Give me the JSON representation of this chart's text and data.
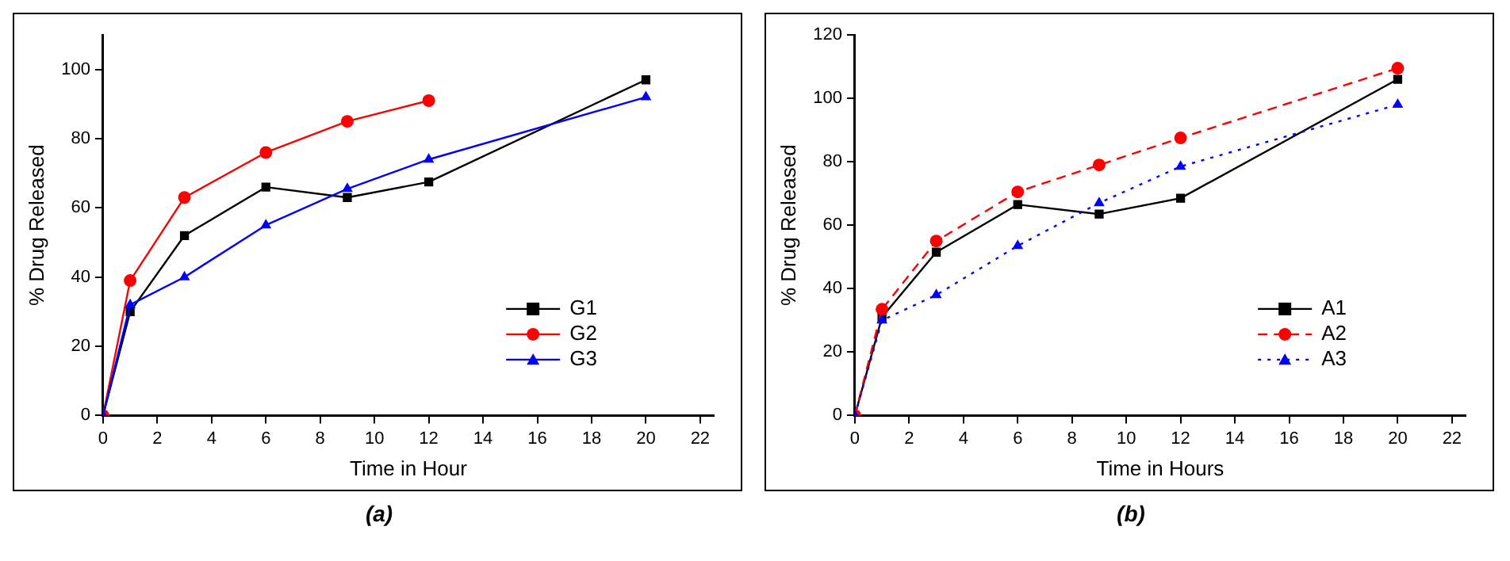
{
  "chart_data": [
    {
      "type": "line",
      "xlabel": "Time in Hour",
      "ylabel": "% Drug Released",
      "x": [
        0,
        1,
        3,
        6,
        9,
        12,
        20
      ],
      "xlim": [
        0,
        22.5
      ],
      "xticks": [
        0,
        2,
        4,
        6,
        8,
        10,
        12,
        14,
        16,
        18,
        20,
        22
      ],
      "ylim": [
        0,
        110
      ],
      "yticks": [
        0,
        20,
        40,
        60,
        80,
        100
      ],
      "grid": false,
      "legend": "bottom right",
      "annotations": [
        "(a)"
      ],
      "series": [
        {
          "name": "G1",
          "color": "#000000",
          "marker": "square",
          "line_style": "solid",
          "values": [
            0,
            30,
            52,
            66,
            63,
            67.5,
            97
          ]
        },
        {
          "name": "G2",
          "color": "#ff0000",
          "marker": "circle",
          "line_style": "solid",
          "values": [
            0,
            39,
            63,
            76,
            85,
            91,
            null
          ]
        },
        {
          "name": "G3",
          "color": "#0000ff",
          "marker": "triangle",
          "line_style": "solid",
          "values": [
            0,
            32,
            40,
            55,
            65.5,
            74,
            92
          ]
        }
      ]
    },
    {
      "type": "line",
      "xlabel": "Time in Hours",
      "ylabel": "% Drug Released",
      "x": [
        0,
        1,
        3,
        6,
        9,
        12,
        20
      ],
      "xlim": [
        0,
        22.5
      ],
      "xticks": [
        0,
        2,
        4,
        6,
        8,
        10,
        12,
        14,
        16,
        18,
        20,
        22
      ],
      "ylim": [
        0,
        120
      ],
      "yticks": [
        0,
        20,
        40,
        60,
        80,
        100,
        120
      ],
      "grid": false,
      "legend": "bottom right",
      "annotations": [
        "(b)"
      ],
      "series": [
        {
          "name": "A1",
          "color": "#000000",
          "marker": "square",
          "line_style": "solid",
          "values": [
            0,
            31,
            51.5,
            66.5,
            63.5,
            68.5,
            106
          ]
        },
        {
          "name": "A2",
          "color": "#ff0000",
          "marker": "circle",
          "line_style": "dashed",
          "values": [
            0,
            33.5,
            55,
            70.5,
            79,
            87.5,
            109.5
          ]
        },
        {
          "name": "A3",
          "color": "#0000ff",
          "marker": "triangle",
          "line_style": "dotted",
          "values": [
            0,
            30,
            38,
            53.5,
            67,
            78.5,
            98
          ]
        }
      ]
    }
  ]
}
